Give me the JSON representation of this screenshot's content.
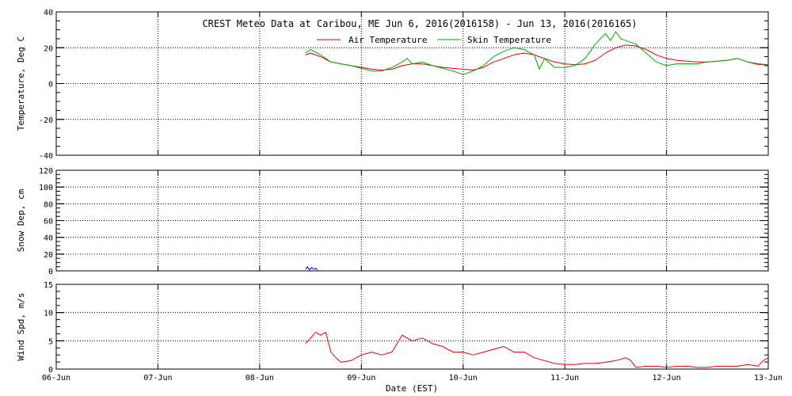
{
  "chart_data": {
    "type": "line",
    "title": "CREST Meteo Data at Caribou, ME   Jun  6, 2016(2016158) - Jun 13, 2016(2016165)",
    "xlabel": "Date (EST)",
    "x_ticks": [
      "06-Jun",
      "07-Jun",
      "08-Jun",
      "09-Jun",
      "10-Jun",
      "11-Jun",
      "12-Jun",
      "13-Jun"
    ],
    "xlim_days": [
      0,
      7
    ],
    "panels": [
      {
        "id": "temperature",
        "ylabel": "Temperature, Deg C",
        "ylim": [
          -40,
          40
        ],
        "yticks": [
          -40,
          -20,
          0,
          20,
          40
        ],
        "legend": [
          "Air Temperature",
          "Skin Temperature"
        ],
        "series": [
          {
            "name": "Air Temperature",
            "color": "#dd0000",
            "x": [
              2.45,
              2.5,
              2.6,
              2.7,
              2.8,
              2.9,
              3.0,
              3.1,
              3.2,
              3.3,
              3.4,
              3.5,
              3.6,
              3.7,
              3.8,
              3.9,
              4.0,
              4.1,
              4.2,
              4.3,
              4.4,
              4.5,
              4.6,
              4.7,
              4.75,
              4.8,
              4.9,
              5.0,
              5.1,
              5.2,
              5.3,
              5.4,
              5.5,
              5.6,
              5.7,
              5.8,
              5.9,
              6.0,
              6.1,
              6.2,
              6.3,
              6.4,
              6.5,
              6.6,
              6.7,
              6.8,
              6.9,
              7.0
            ],
            "y": [
              16,
              17,
              15,
              12,
              11,
              10,
              9,
              8,
              7.5,
              8,
              10,
              11,
              11,
              10,
              9,
              8.5,
              8,
              7.5,
              9,
              12,
              14,
              16,
              17,
              16,
              15,
              14,
              12,
              11,
              10.5,
              11,
              13,
              17,
              20,
              21.5,
              21,
              19,
              16,
              14,
              13,
              12.5,
              12,
              12,
              12.5,
              13,
              14,
              12,
              11,
              10.5
            ]
          },
          {
            "name": "Skin Temperature",
            "color": "#00aa00",
            "x": [
              2.45,
              2.5,
              2.6,
              2.7,
              2.8,
              2.9,
              3.0,
              3.1,
              3.2,
              3.3,
              3.4,
              3.45,
              3.5,
              3.6,
              3.7,
              3.8,
              3.9,
              4.0,
              4.1,
              4.2,
              4.3,
              4.4,
              4.5,
              4.6,
              4.7,
              4.75,
              4.8,
              4.9,
              5.0,
              5.1,
              5.2,
              5.3,
              5.4,
              5.45,
              5.5,
              5.55,
              5.6,
              5.7,
              5.8,
              5.9,
              6.0,
              6.1,
              6.2,
              6.3,
              6.4,
              6.5,
              6.6,
              6.7,
              6.8,
              6.9,
              7.0
            ],
            "y": [
              17,
              19,
              16,
              12,
              11,
              10,
              8.5,
              7,
              7,
              9,
              12,
              14,
              11,
              12,
              10,
              8.5,
              7,
              5,
              7,
              10,
              15,
              18,
              20,
              19,
              16,
              8,
              14,
              9,
              9,
              10,
              14,
              22,
              28,
              24,
              29,
              25,
              24,
              22,
              17,
              12,
              10,
              11,
              11,
              11,
              12,
              12.5,
              13,
              14,
              12,
              10.5,
              10.5
            ]
          }
        ]
      },
      {
        "id": "snow",
        "ylabel": "Snow Dep, cm",
        "ylim": [
          0,
          120
        ],
        "yticks": [
          0,
          20,
          40,
          60,
          80,
          100,
          120
        ],
        "series": [
          {
            "name": "Snow Depth",
            "color": "#0000cc",
            "x": [
              2.45,
              2.47,
              2.49,
              2.51,
              2.53,
              2.55,
              2.57
            ],
            "y": [
              2,
              5,
              1,
              4,
              2,
              3,
              1
            ]
          }
        ]
      },
      {
        "id": "wind",
        "ylabel": "Wind Spd, m/s",
        "ylim": [
          0,
          15
        ],
        "yticks": [
          0,
          5,
          10,
          15
        ],
        "series": [
          {
            "name": "Wind Speed",
            "color": "#dd0000",
            "x": [
              2.45,
              2.5,
              2.55,
              2.6,
              2.65,
              2.7,
              2.75,
              2.8,
              2.9,
              3.0,
              3.1,
              3.2,
              3.3,
              3.4,
              3.5,
              3.6,
              3.7,
              3.8,
              3.9,
              4.0,
              4.1,
              4.2,
              4.3,
              4.4,
              4.5,
              4.6,
              4.7,
              4.8,
              4.9,
              5.0,
              5.1,
              5.2,
              5.3,
              5.4,
              5.5,
              5.6,
              5.65,
              5.7,
              5.8,
              5.9,
              6.0,
              6.1,
              6.2,
              6.3,
              6.4,
              6.5,
              6.6,
              6.7,
              6.8,
              6.9,
              6.95,
              7.0
            ],
            "y": [
              4.5,
              5.5,
              6.5,
              6,
              6.5,
              3,
              2,
              1.2,
              1.5,
              2.5,
              3,
              2.5,
              3,
              6,
              5,
              5.5,
              4.5,
              4,
              3,
              3,
              2.5,
              3,
              3.5,
              4,
              3,
              3,
              2,
              1.5,
              1,
              0.8,
              0.8,
              1,
              1,
              1.2,
              1.5,
              2,
              1.5,
              0.3,
              0.5,
              0.5,
              0.3,
              0.5,
              0.5,
              0.3,
              0.3,
              0.5,
              0.5,
              0.5,
              0.8,
              0.5,
              1.5,
              2
            ]
          }
        ]
      }
    ]
  }
}
